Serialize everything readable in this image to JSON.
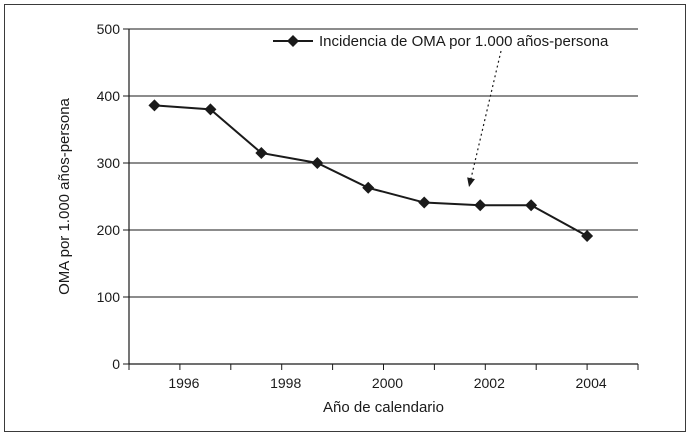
{
  "chart_data": {
    "type": "line",
    "title": "",
    "xlabel": "Año de calendario",
    "ylabel": "OMA por 1.000 años-persona",
    "ylim": [
      0,
      500
    ],
    "yticks": [
      0,
      100,
      200,
      300,
      400,
      500
    ],
    "xlim": [
      1995.0,
      2005.0
    ],
    "xticks": [
      1996,
      1998,
      2000,
      2002,
      2004
    ],
    "grid": true,
    "legend_position": "top-right",
    "series": [
      {
        "name": "Incidencia de OMA por 1.000 años-persona",
        "marker": "diamond",
        "color": "#1a1a1a",
        "points": [
          {
            "x": 1995.5,
            "y": 386
          },
          {
            "x": 1996.6,
            "y": 380
          },
          {
            "x": 1997.6,
            "y": 315
          },
          {
            "x": 1998.7,
            "y": 300
          },
          {
            "x": 1999.7,
            "y": 263
          },
          {
            "x": 2000.8,
            "y": 241
          },
          {
            "x": 2001.9,
            "y": 237
          },
          {
            "x": 2002.9,
            "y": 237
          },
          {
            "x": 2004.0,
            "y": 191
          }
        ]
      }
    ]
  }
}
